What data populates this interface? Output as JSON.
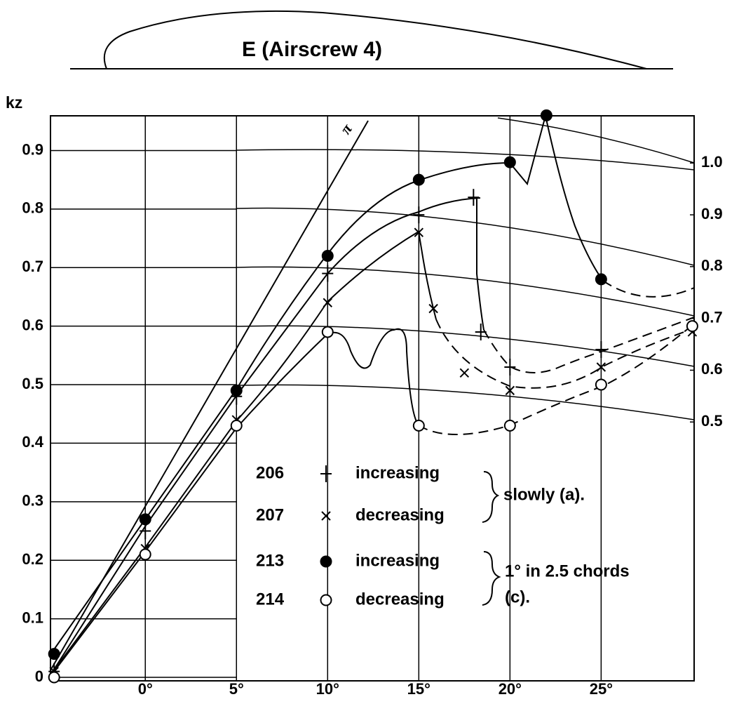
{
  "chart_data": {
    "type": "scatter",
    "title": "E (Airscrew 4)",
    "y_label": "kz",
    "xlim": [
      -5.2,
      30.1
    ],
    "ylim": [
      0,
      0.96
    ],
    "y2lim": [
      0.007,
      1.092
    ],
    "xticks": [
      {
        "value": 0,
        "label": "0°"
      },
      {
        "value": 5,
        "label": "5°"
      },
      {
        "value": 10,
        "label": "10°"
      },
      {
        "value": 15,
        "label": "15°"
      },
      {
        "value": 20,
        "label": "20°"
      },
      {
        "value": 25,
        "label": "25°"
      }
    ],
    "yticks": [
      0,
      0.1,
      0.2,
      0.3,
      0.4,
      0.5,
      0.6,
      0.7,
      0.8,
      0.9
    ],
    "y2ticks": [
      0.5,
      0.6,
      0.7,
      0.8,
      0.9,
      {
        "value": 1,
        "label": "1.0"
      }
    ],
    "grid": true,
    "line_label": "π",
    "series": [
      {
        "name": "206",
        "label": "increasing",
        "marker": "plus",
        "color": "#000000",
        "x": [
          -5,
          0,
          5,
          10,
          15,
          18,
          18.4,
          20,
          25
        ],
        "values": [
          0.01,
          0.25,
          0.48,
          0.69,
          0.79,
          0.82,
          0.59,
          0.53,
          0.56
        ]
      },
      {
        "name": "207",
        "label": "decreasing",
        "marker": "cross",
        "color": "#000000",
        "x": [
          -5,
          0,
          5,
          10,
          15,
          15.8,
          17.5,
          20,
          25,
          30
        ],
        "values": [
          0.01,
          0.22,
          0.44,
          0.64,
          0.76,
          0.63,
          0.52,
          0.49,
          0.53,
          0.59
        ]
      },
      {
        "name": "213",
        "label": "increasing",
        "marker": "filled-circle",
        "color": "#000000",
        "x": [
          -5,
          0,
          5,
          10,
          15,
          20,
          22,
          25
        ],
        "values": [
          0.04,
          0.27,
          0.49,
          0.72,
          0.85,
          0.88,
          0.96,
          0.68
        ]
      },
      {
        "name": "214",
        "label": "decreasing",
        "marker": "open-circle",
        "color": "#000000",
        "x": [
          -5,
          0,
          5,
          10,
          15,
          20,
          25,
          30
        ],
        "values": [
          0,
          0.21,
          0.43,
          0.59,
          0.43,
          0.43,
          0.5,
          0.6
        ]
      }
    ],
    "legend_notes": [
      "slowly (a).",
      "1° in 2.5 chords",
      "(c)."
    ]
  }
}
